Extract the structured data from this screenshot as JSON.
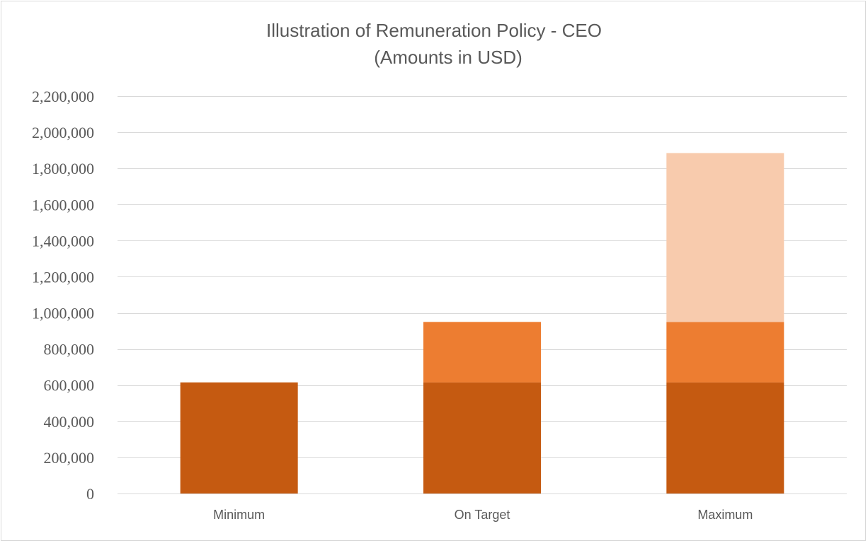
{
  "chart_data": {
    "type": "bar",
    "stacked": true,
    "title": "Illustration of Remuneration Policy - CEO",
    "subtitle": "(Amounts in USD)",
    "xlabel": "",
    "ylabel": "",
    "categories": [
      "Minimum",
      "On Target",
      "Maximum"
    ],
    "series": [
      {
        "values": [
          615000,
          615000,
          615000
        ],
        "color": "#C55A11"
      },
      {
        "values": [
          0,
          335000,
          335000
        ],
        "color": "#ED7D31"
      },
      {
        "values": [
          0,
          0,
          935000
        ],
        "color": "#F8CBAD"
      }
    ],
    "ylim": [
      0,
      2200000
    ],
    "yticks": [
      0,
      200000,
      400000,
      600000,
      800000,
      1000000,
      1200000,
      1400000,
      1600000,
      1800000,
      2000000,
      2200000
    ],
    "ytick_labels": [
      "0",
      "200,000",
      "400,000",
      "600,000",
      "800,000",
      "1,000,000",
      "1,200,000",
      "1,400,000",
      "1,600,000",
      "1,800,000",
      "2,000,000",
      "2,200,000"
    ],
    "grid": true,
    "legend": "none",
    "gridline_color": "#D9D9D9",
    "text_color": "#595959"
  }
}
